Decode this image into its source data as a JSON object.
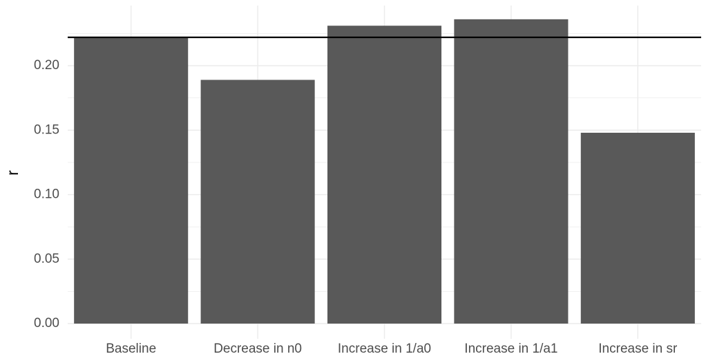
{
  "chart_data": {
    "type": "bar",
    "title": "",
    "xlabel": "",
    "ylabel": "r",
    "categories": [
      "Baseline",
      "Decrease in n0",
      "Increase in 1/a0",
      "Increase in 1/a1",
      "Increase in sr"
    ],
    "values": [
      0.222,
      0.189,
      0.231,
      0.236,
      0.148
    ],
    "reference_line": 0.222,
    "ylim": [
      0,
      0.24
    ],
    "yticks": [
      0.0,
      0.05,
      0.1,
      0.15,
      0.2
    ],
    "ytick_labels": [
      "0.00",
      "0.05",
      "0.10",
      "0.15",
      "0.20"
    ],
    "grid": true,
    "legend": "none",
    "bar_color": "#595959",
    "grid_color": "#ebebeb",
    "line_color": "#000000"
  }
}
